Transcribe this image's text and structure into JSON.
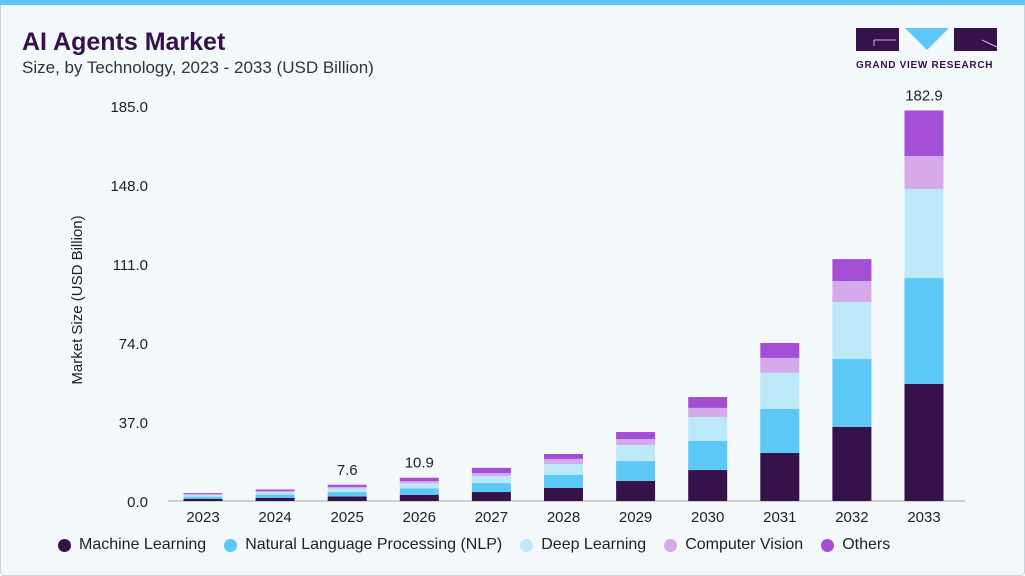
{
  "header": {
    "title": "AI Agents Market",
    "subtitle": "Size, by Technology, 2023 - 2033 (USD Billion)"
  },
  "logo": {
    "text": "GRAND VIEW RESEARCH"
  },
  "chart_data": {
    "type": "bar",
    "stacked": true,
    "title": "AI Agents Market",
    "subtitle": "Size, by Technology, 2023 - 2033 (USD Billion)",
    "xlabel": "",
    "ylabel": "Market Size (USD Billion)",
    "ylim": [
      0,
      185
    ],
    "yticks": [
      "0.0",
      "37.0",
      "74.0",
      "111.0",
      "148.0",
      "185.0"
    ],
    "categories": [
      "2023",
      "2024",
      "2025",
      "2026",
      "2027",
      "2028",
      "2029",
      "2030",
      "2031",
      "2032",
      "2033"
    ],
    "series": [
      {
        "name": "Machine Learning",
        "color": "#35134a",
        "values": [
          1.0,
          1.5,
          2.1,
          2.9,
          4.2,
          6.1,
          9.4,
          14.5,
          22.5,
          34.7,
          54.8
        ]
      },
      {
        "name": "Natural Language Processing (NLP)",
        "color": "#5bc8f5",
        "values": [
          1.0,
          1.5,
          2.1,
          3.0,
          4.2,
          6.1,
          9.3,
          13.6,
          20.6,
          31.8,
          49.6
        ]
      },
      {
        "name": "Deep Learning",
        "color": "#bce8f8",
        "values": [
          0.9,
          1.2,
          1.7,
          2.4,
          3.3,
          5.1,
          7.5,
          11.2,
          16.9,
          26.7,
          41.7
        ]
      },
      {
        "name": "Computer Vision",
        "color": "#d5a9ea",
        "values": [
          0.3,
          0.5,
          0.7,
          1.0,
          1.4,
          2.4,
          2.8,
          4.3,
          7.0,
          9.8,
          15.5
        ]
      },
      {
        "name": "Others",
        "color": "#a24fd6",
        "values": [
          0.5,
          0.7,
          1.0,
          1.6,
          2.4,
          2.3,
          3.3,
          5.1,
          7.0,
          10.3,
          21.3
        ]
      }
    ],
    "data_labels": [
      {
        "category": "2025",
        "text": "7.6"
      },
      {
        "category": "2026",
        "text": "10.9"
      },
      {
        "category": "2033",
        "text": "182.9"
      }
    ],
    "legend": "bottom",
    "grid": false
  }
}
